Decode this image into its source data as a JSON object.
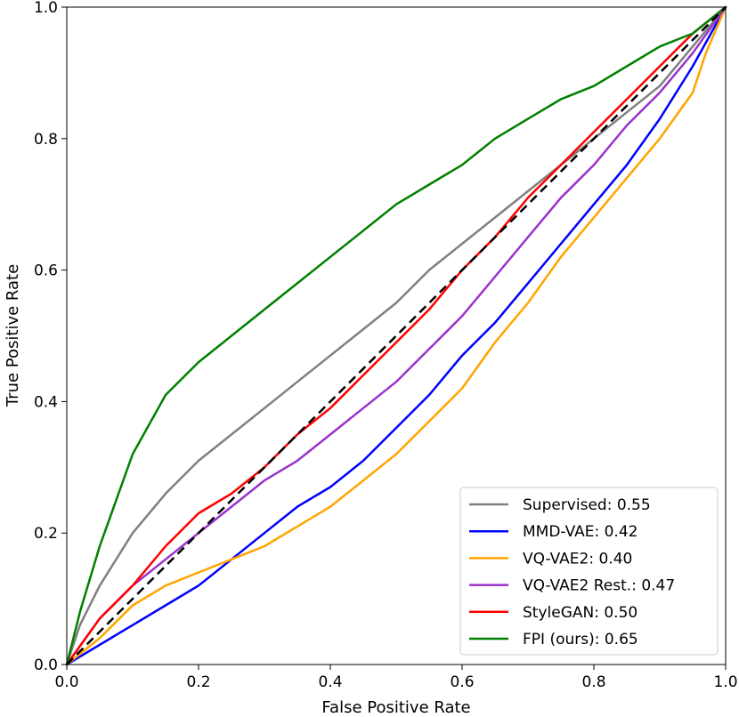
{
  "chart_data": {
    "type": "line",
    "title": "",
    "xlabel": "False Positive Rate",
    "ylabel": "True Positive Rate",
    "xlim": [
      0.0,
      1.0
    ],
    "ylim": [
      0.0,
      1.0
    ],
    "grid": false,
    "legend_position": "bottom-right",
    "xticks": [
      "0.0",
      "0.2",
      "0.4",
      "0.6",
      "0.8",
      "1.0"
    ],
    "yticks": [
      "0.0",
      "0.2",
      "0.4",
      "0.6",
      "0.8",
      "1.0"
    ],
    "xtick_values": [
      0,
      0.2,
      0.4,
      0.6,
      0.8,
      1.0
    ],
    "ytick_values": [
      0,
      0.2,
      0.4,
      0.6,
      0.8,
      1.0
    ],
    "reference_line": {
      "x": [
        0,
        1
      ],
      "y": [
        0,
        1
      ],
      "color": "#000000",
      "style": "dashed"
    },
    "series": [
      {
        "name": "Supervised: 0.55",
        "color": "#808080",
        "x": [
          0,
          0.02,
          0.05,
          0.1,
          0.15,
          0.2,
          0.25,
          0.3,
          0.35,
          0.4,
          0.45,
          0.5,
          0.55,
          0.6,
          0.65,
          0.7,
          0.75,
          0.8,
          0.85,
          0.9,
          0.95,
          1.0
        ],
        "y": [
          0,
          0.06,
          0.12,
          0.2,
          0.26,
          0.31,
          0.35,
          0.39,
          0.43,
          0.47,
          0.51,
          0.55,
          0.6,
          0.64,
          0.68,
          0.72,
          0.76,
          0.8,
          0.84,
          0.88,
          0.94,
          1.0
        ]
      },
      {
        "name": "MMD-VAE: 0.42",
        "color": "#0000ff",
        "x": [
          0,
          0.05,
          0.1,
          0.15,
          0.2,
          0.25,
          0.3,
          0.35,
          0.4,
          0.45,
          0.5,
          0.55,
          0.6,
          0.65,
          0.7,
          0.75,
          0.8,
          0.85,
          0.9,
          0.95,
          1.0
        ],
        "y": [
          0,
          0.03,
          0.06,
          0.09,
          0.12,
          0.16,
          0.2,
          0.24,
          0.27,
          0.31,
          0.36,
          0.41,
          0.47,
          0.52,
          0.58,
          0.64,
          0.7,
          0.76,
          0.83,
          0.91,
          1.0
        ]
      },
      {
        "name": "VQ-VAE2: 0.40",
        "color": "#ffa500",
        "x": [
          0,
          0.05,
          0.1,
          0.15,
          0.2,
          0.25,
          0.3,
          0.35,
          0.4,
          0.45,
          0.5,
          0.55,
          0.6,
          0.65,
          0.7,
          0.75,
          0.8,
          0.85,
          0.9,
          0.95,
          0.97,
          1.0
        ],
        "y": [
          0,
          0.04,
          0.09,
          0.12,
          0.14,
          0.16,
          0.18,
          0.21,
          0.24,
          0.28,
          0.32,
          0.37,
          0.42,
          0.49,
          0.55,
          0.62,
          0.68,
          0.74,
          0.8,
          0.87,
          0.93,
          1.0
        ]
      },
      {
        "name": "VQ-VAE2 Rest.: 0.47",
        "color": "#9a32cd",
        "x": [
          0,
          0.05,
          0.1,
          0.15,
          0.2,
          0.25,
          0.3,
          0.35,
          0.4,
          0.45,
          0.5,
          0.55,
          0.6,
          0.65,
          0.7,
          0.75,
          0.8,
          0.85,
          0.9,
          0.95,
          1.0
        ],
        "y": [
          0,
          0.07,
          0.12,
          0.16,
          0.2,
          0.24,
          0.28,
          0.31,
          0.35,
          0.39,
          0.43,
          0.48,
          0.53,
          0.59,
          0.65,
          0.71,
          0.76,
          0.82,
          0.87,
          0.93,
          1.0
        ]
      },
      {
        "name": "StyleGAN: 0.50",
        "color": "#ff0000",
        "x": [
          0,
          0.05,
          0.1,
          0.15,
          0.2,
          0.25,
          0.3,
          0.35,
          0.4,
          0.45,
          0.5,
          0.55,
          0.6,
          0.65,
          0.7,
          0.75,
          0.8,
          0.85,
          0.9,
          0.95,
          1.0
        ],
        "y": [
          0,
          0.07,
          0.12,
          0.18,
          0.23,
          0.26,
          0.3,
          0.35,
          0.39,
          0.44,
          0.49,
          0.54,
          0.6,
          0.65,
          0.71,
          0.76,
          0.81,
          0.86,
          0.91,
          0.96,
          1.0
        ]
      },
      {
        "name": "FPI (ours): 0.65",
        "color": "#008000",
        "x": [
          0,
          0.02,
          0.05,
          0.1,
          0.15,
          0.2,
          0.25,
          0.3,
          0.35,
          0.4,
          0.45,
          0.5,
          0.55,
          0.6,
          0.65,
          0.7,
          0.75,
          0.8,
          0.85,
          0.9,
          0.95,
          1.0
        ],
        "y": [
          0,
          0.08,
          0.18,
          0.32,
          0.41,
          0.46,
          0.5,
          0.54,
          0.58,
          0.62,
          0.66,
          0.7,
          0.73,
          0.76,
          0.8,
          0.83,
          0.86,
          0.88,
          0.91,
          0.94,
          0.96,
          1.0
        ]
      }
    ]
  }
}
